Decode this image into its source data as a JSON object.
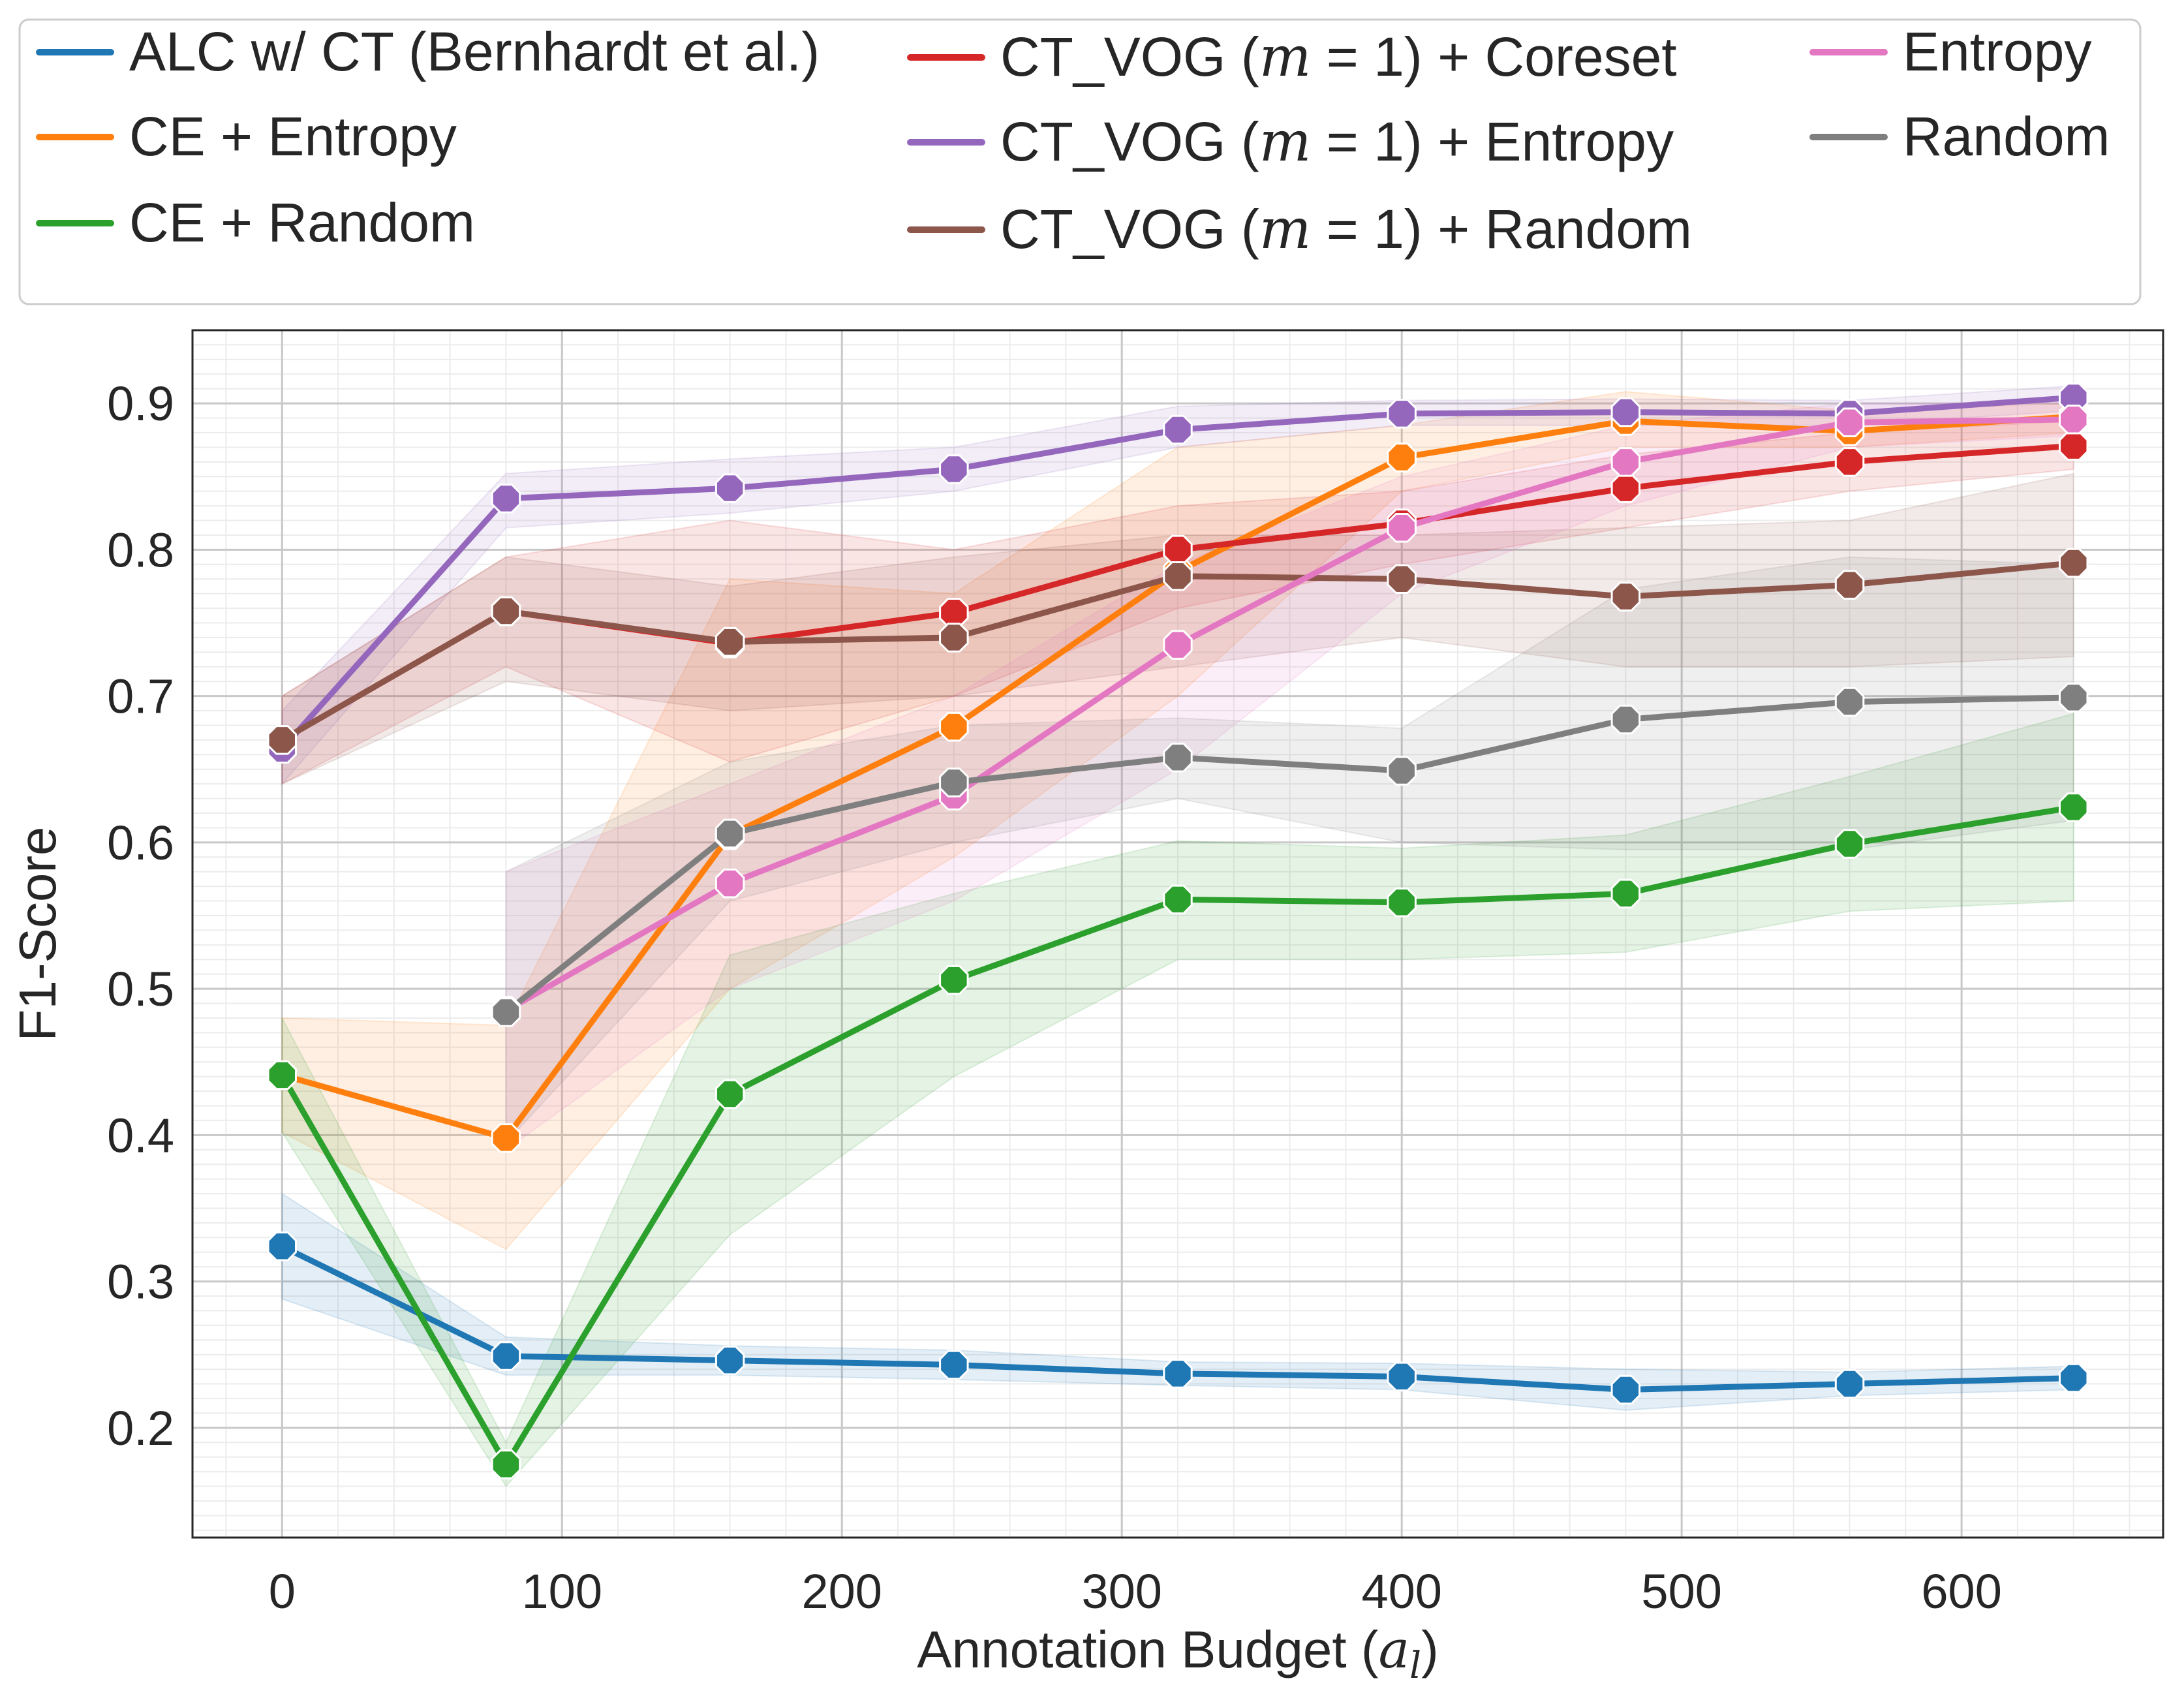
{
  "chart_data": {
    "type": "line",
    "title": "",
    "xlabel": "Annotation Budget (",
    "xlabel_var": "a",
    "xlabel_sub": "l",
    "xlabel_end": ")",
    "ylabel": "F1-Score",
    "xlim": [
      -32,
      672
    ],
    "ylim": [
      0.125,
      0.95
    ],
    "xticks": [
      0,
      100,
      200,
      300,
      400,
      500,
      600
    ],
    "yticks": [
      0.2,
      0.3,
      0.4,
      0.5,
      0.6,
      0.7,
      0.8,
      0.9
    ],
    "x": [
      0,
      80,
      160,
      240,
      320,
      400,
      480,
      560,
      640
    ],
    "grid": true,
    "legend_position": "top",
    "series": [
      {
        "name": "ALC w/ CT (Bernhardt et al.)",
        "parts": [
          "ALC w/ CT (Bernhardt et al.)"
        ],
        "color": "#1f77b4",
        "x": [
          0,
          80,
          160,
          240,
          320,
          400,
          480,
          560,
          640
        ],
        "values": [
          0.324,
          0.249,
          0.246,
          0.243,
          0.237,
          0.235,
          0.226,
          0.23,
          0.234
        ],
        "lower": [
          0.288,
          0.236,
          0.236,
          0.233,
          0.229,
          0.226,
          0.212,
          0.222,
          0.226
        ],
        "upper": [
          0.36,
          0.262,
          0.256,
          0.253,
          0.245,
          0.244,
          0.24,
          0.238,
          0.242
        ]
      },
      {
        "name": "CE + Entropy",
        "parts": [
          "CE + Entropy"
        ],
        "color": "#ff7f0e",
        "x": [
          0,
          80,
          160,
          240,
          320,
          400,
          480,
          560,
          640
        ],
        "values": [
          0.441,
          0.398,
          0.605,
          0.679,
          0.785,
          0.863,
          0.888,
          0.881,
          0.891
        ],
        "lower": [
          0.402,
          0.322,
          0.5,
          0.59,
          0.7,
          0.84,
          0.87,
          0.87,
          0.88
        ],
        "upper": [
          0.48,
          0.475,
          0.78,
          0.77,
          0.87,
          0.885,
          0.908,
          0.895,
          0.9
        ]
      },
      {
        "name": "CE + Random",
        "parts": [
          "CE + Random"
        ],
        "color": "#2ca02c",
        "x": [
          0,
          80,
          160,
          240,
          320,
          400,
          480,
          560,
          640
        ],
        "values": [
          0.441,
          0.175,
          0.428,
          0.506,
          0.561,
          0.559,
          0.565,
          0.599,
          0.624
        ],
        "lower": [
          0.402,
          0.16,
          0.332,
          0.44,
          0.52,
          0.52,
          0.525,
          0.553,
          0.56
        ],
        "upper": [
          0.48,
          0.19,
          0.523,
          0.565,
          0.601,
          0.596,
          0.605,
          0.645,
          0.688
        ]
      },
      {
        "name": "CT_VOG (m = 1) + Coreset",
        "parts": [
          "CT_VOG (",
          "m",
          " = 1) + Coreset"
        ],
        "color": "#d62728",
        "x": [
          0,
          80,
          160,
          240,
          320,
          400,
          480,
          560,
          640
        ],
        "values": [
          0.67,
          0.758,
          0.736,
          0.757,
          0.8,
          0.818,
          0.842,
          0.86,
          0.871
        ],
        "lower": [
          0.64,
          0.72,
          0.655,
          0.7,
          0.76,
          0.79,
          0.815,
          0.84,
          0.855
        ],
        "upper": [
          0.7,
          0.795,
          0.82,
          0.8,
          0.83,
          0.84,
          0.865,
          0.88,
          0.888
        ]
      },
      {
        "name": "CT_VOG (m = 1) + Entropy",
        "parts": [
          "CT_VOG (",
          "m",
          " = 1) + Entropy"
        ],
        "color": "#9467bd",
        "x": [
          0,
          80,
          160,
          240,
          320,
          400,
          480,
          560,
          640
        ],
        "values": [
          0.664,
          0.835,
          0.842,
          0.855,
          0.882,
          0.893,
          0.894,
          0.893,
          0.904
        ],
        "lower": [
          0.64,
          0.815,
          0.825,
          0.84,
          0.87,
          0.885,
          0.885,
          0.885,
          0.895
        ],
        "upper": [
          0.69,
          0.852,
          0.862,
          0.87,
          0.898,
          0.902,
          0.903,
          0.902,
          0.912
        ]
      },
      {
        "name": "CT_VOG (m = 1) + Random",
        "parts": [
          "CT_VOG (",
          "m",
          " = 1) + Random"
        ],
        "color": "#8c564b",
        "x": [
          0,
          80,
          160,
          240,
          320,
          400,
          480,
          560,
          640
        ],
        "values": [
          0.67,
          0.758,
          0.737,
          0.74,
          0.782,
          0.78,
          0.768,
          0.776,
          0.791
        ],
        "lower": [
          0.64,
          0.71,
          0.69,
          0.7,
          0.72,
          0.74,
          0.72,
          0.72,
          0.727
        ],
        "upper": [
          0.7,
          0.795,
          0.775,
          0.795,
          0.81,
          0.81,
          0.815,
          0.82,
          0.852
        ]
      },
      {
        "name": "Entropy",
        "parts": [
          "Entropy"
        ],
        "color": "#e377c2",
        "x": [
          80,
          160,
          240,
          320,
          400,
          480,
          560,
          640
        ],
        "values": [
          0.485,
          0.572,
          0.632,
          0.735,
          0.815,
          0.86,
          0.887,
          0.889
        ],
        "lower": [
          0.39,
          0.5,
          0.56,
          0.65,
          0.77,
          0.83,
          0.87,
          0.878
        ],
        "upper": [
          0.58,
          0.64,
          0.7,
          0.79,
          0.85,
          0.885,
          0.9,
          0.9
        ]
      },
      {
        "name": "Random",
        "parts": [
          "Random"
        ],
        "color": "#7f7f7f",
        "x": [
          80,
          160,
          240,
          320,
          400,
          480,
          560,
          640
        ],
        "values": [
          0.484,
          0.606,
          0.641,
          0.658,
          0.649,
          0.684,
          0.696,
          0.699
        ],
        "lower": [
          0.395,
          0.56,
          0.6,
          0.63,
          0.6,
          0.595,
          0.595,
          0.615
        ],
        "upper": [
          0.58,
          0.655,
          0.68,
          0.685,
          0.678,
          0.773,
          0.795,
          0.79
        ]
      }
    ]
  }
}
